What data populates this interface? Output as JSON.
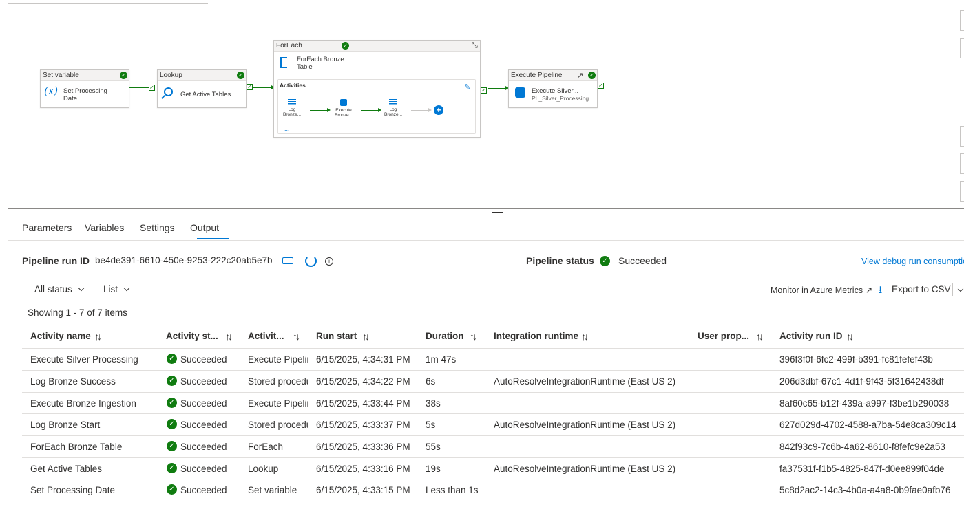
{
  "canvas": {
    "activities": {
      "set_variable": {
        "type": "Set variable",
        "name_line1": "Set Processing",
        "name_line2": "Date",
        "icon": "(x)"
      },
      "lookup": {
        "type": "Lookup",
        "name": "Get Active Tables"
      },
      "foreach": {
        "type": "ForEach",
        "name_line1": "ForEach Bronze",
        "name_line2": "Table",
        "activities_label": "Activities",
        "more": "...",
        "inner": [
          {
            "line1": "Log",
            "line2": "Bronze..."
          },
          {
            "line1": "Execute",
            "line2": "Bronze..."
          },
          {
            "line1": "Log",
            "line2": "Bronze..."
          }
        ]
      },
      "execute_pipeline": {
        "type": "Execute Pipeline",
        "name": "Execute Silver...",
        "subname": "PL_Silver_Processing"
      }
    }
  },
  "tabs": [
    "Parameters",
    "Variables",
    "Settings",
    "Output"
  ],
  "active_tab": "Output",
  "run": {
    "id_label": "Pipeline run ID",
    "id_value": "be4de391-6610-450e-9253-222c20ab5e7b",
    "status_label": "Pipeline status",
    "status_value": "Succeeded",
    "view_debug_link": "View debug run consumption"
  },
  "filters": {
    "status": "All status",
    "view": "List"
  },
  "actions": {
    "monitor": "Monitor in Azure Metrics",
    "export": "Export to CSV"
  },
  "showing": "Showing 1 - 7 of 7 items",
  "table": {
    "headers": [
      "Activity name",
      "Activity st...",
      "Activit...",
      "Run start",
      "Duration",
      "Integration runtime",
      "User prop...",
      "Activity run ID"
    ],
    "rows": [
      {
        "name": "Execute Silver Processing",
        "status": "Succeeded",
        "type": "Execute Pipeline",
        "start": "6/15/2025, 4:34:31 PM",
        "duration": "1m 47s",
        "runtime": "",
        "run_id": "396f3f0f-6fc2-499f-b391-fc81fefef43b"
      },
      {
        "name": "Log Bronze Success",
        "status": "Succeeded",
        "type": "Stored procedure",
        "start": "6/15/2025, 4:34:22 PM",
        "duration": "6s",
        "runtime": "AutoResolveIntegrationRuntime (East US 2)",
        "run_id": "206d3dbf-67c1-4d1f-9f43-5f31642438df"
      },
      {
        "name": "Execute Bronze Ingestion",
        "status": "Succeeded",
        "type": "Execute Pipeline",
        "start": "6/15/2025, 4:33:44 PM",
        "duration": "38s",
        "runtime": "",
        "run_id": "8af60c65-b12f-439a-a997-f3be1b290038"
      },
      {
        "name": "Log Bronze Start",
        "status": "Succeeded",
        "type": "Stored procedure",
        "start": "6/15/2025, 4:33:37 PM",
        "duration": "5s",
        "runtime": "AutoResolveIntegrationRuntime (East US 2)",
        "run_id": "627d029d-4702-4588-a7ba-54e8ca309c14"
      },
      {
        "name": "ForEach Bronze Table",
        "status": "Succeeded",
        "type": "ForEach",
        "start": "6/15/2025, 4:33:36 PM",
        "duration": "55s",
        "runtime": "",
        "run_id": "842f93c9-7c6b-4a62-8610-f8fefc9e2a53"
      },
      {
        "name": "Get Active Tables",
        "status": "Succeeded",
        "type": "Lookup",
        "start": "6/15/2025, 4:33:16 PM",
        "duration": "19s",
        "runtime": "AutoResolveIntegrationRuntime (East US 2)",
        "run_id": "fa37531f-f1b5-4825-847f-d0ee899f04de"
      },
      {
        "name": "Set Processing Date",
        "status": "Succeeded",
        "type": "Set variable",
        "start": "6/15/2025, 4:33:15 PM",
        "duration": "Less than 1s",
        "runtime": "",
        "run_id": "5c8d2ac2-14c3-4b0a-a4a8-0b9fae0afb76"
      }
    ]
  },
  "colors": {
    "accent": "#0078d4",
    "success": "#107c10",
    "border": "#e1dfdd"
  }
}
